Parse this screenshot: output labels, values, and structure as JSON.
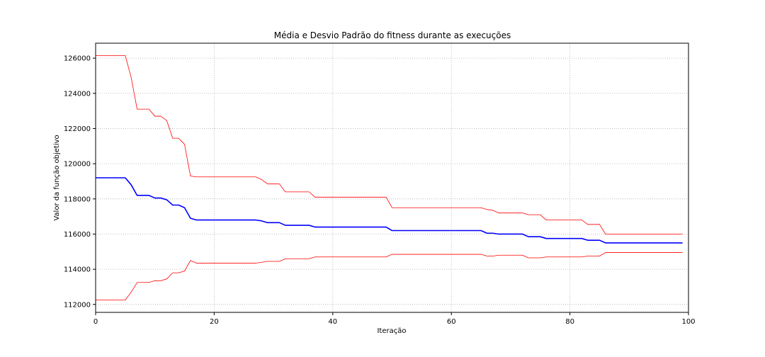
{
  "chart_data": {
    "type": "line",
    "title": "Média e Desvio Padrão do fitness durante as execuções",
    "xlabel": "Iteração",
    "ylabel": "Valor da função objetivo",
    "xlim": [
      0,
      100
    ],
    "ylim": [
      111550,
      126850
    ],
    "grid": true,
    "grid_style": "dotted",
    "x_ticks": [
      0,
      20,
      40,
      60,
      80,
      100
    ],
    "y_ticks": [
      112000,
      114000,
      116000,
      118000,
      120000,
      122000,
      124000,
      126000
    ],
    "series": [
      {
        "color": "#ff0000",
        "points": [
          [
            0,
            126150
          ],
          [
            5,
            126150
          ],
          [
            6,
            124900
          ],
          [
            7,
            123100
          ],
          [
            9,
            123100
          ],
          [
            10,
            122700
          ],
          [
            11,
            122700
          ],
          [
            12,
            122450
          ],
          [
            13,
            121450
          ],
          [
            14,
            121450
          ],
          [
            15,
            121100
          ],
          [
            16,
            119300
          ],
          [
            17,
            119250
          ],
          [
            27,
            119250
          ],
          [
            28,
            119100
          ],
          [
            29,
            118850
          ],
          [
            31,
            118850
          ],
          [
            32,
            118400
          ],
          [
            36,
            118400
          ],
          [
            37,
            118100
          ],
          [
            49,
            118100
          ],
          [
            50,
            117500
          ],
          [
            65,
            117500
          ],
          [
            66,
            117400
          ],
          [
            67,
            117350
          ],
          [
            68,
            117200
          ],
          [
            72,
            117200
          ],
          [
            73,
            117100
          ],
          [
            75,
            117100
          ],
          [
            76,
            116800
          ],
          [
            82,
            116800
          ],
          [
            83,
            116550
          ],
          [
            85,
            116550
          ],
          [
            86,
            116000
          ],
          [
            99,
            116000
          ]
        ]
      },
      {
        "color": "#0000ff",
        "points": [
          [
            0,
            119200
          ],
          [
            5,
            119200
          ],
          [
            6,
            118800
          ],
          [
            7,
            118200
          ],
          [
            9,
            118200
          ],
          [
            10,
            118050
          ],
          [
            11,
            118050
          ],
          [
            12,
            117950
          ],
          [
            13,
            117650
          ],
          [
            14,
            117650
          ],
          [
            15,
            117500
          ],
          [
            16,
            116900
          ],
          [
            17,
            116800
          ],
          [
            27,
            116800
          ],
          [
            28,
            116750
          ],
          [
            29,
            116650
          ],
          [
            31,
            116650
          ],
          [
            32,
            116500
          ],
          [
            36,
            116500
          ],
          [
            37,
            116400
          ],
          [
            49,
            116400
          ],
          [
            50,
            116200
          ],
          [
            65,
            116200
          ],
          [
            66,
            116050
          ],
          [
            67,
            116050
          ],
          [
            68,
            116000
          ],
          [
            72,
            116000
          ],
          [
            73,
            115850
          ],
          [
            75,
            115850
          ],
          [
            76,
            115750
          ],
          [
            82,
            115750
          ],
          [
            83,
            115650
          ],
          [
            85,
            115650
          ],
          [
            86,
            115500
          ],
          [
            99,
            115500
          ]
        ]
      },
      {
        "color": "#ff0000",
        "points": [
          [
            0,
            112250
          ],
          [
            5,
            112250
          ],
          [
            6,
            112700
          ],
          [
            7,
            113250
          ],
          [
            9,
            113250
          ],
          [
            10,
            113350
          ],
          [
            11,
            113350
          ],
          [
            12,
            113450
          ],
          [
            13,
            113800
          ],
          [
            14,
            113800
          ],
          [
            15,
            113900
          ],
          [
            16,
            114500
          ],
          [
            17,
            114350
          ],
          [
            27,
            114350
          ],
          [
            28,
            114400
          ],
          [
            29,
            114450
          ],
          [
            31,
            114450
          ],
          [
            32,
            114600
          ],
          [
            36,
            114600
          ],
          [
            37,
            114700
          ],
          [
            49,
            114700
          ],
          [
            50,
            114850
          ],
          [
            65,
            114850
          ],
          [
            66,
            114750
          ],
          [
            67,
            114750
          ],
          [
            68,
            114800
          ],
          [
            72,
            114800
          ],
          [
            73,
            114650
          ],
          [
            75,
            114650
          ],
          [
            76,
            114700
          ],
          [
            82,
            114700
          ],
          [
            83,
            114750
          ],
          [
            85,
            114750
          ],
          [
            86,
            114950
          ],
          [
            99,
            114950
          ]
        ]
      }
    ]
  }
}
